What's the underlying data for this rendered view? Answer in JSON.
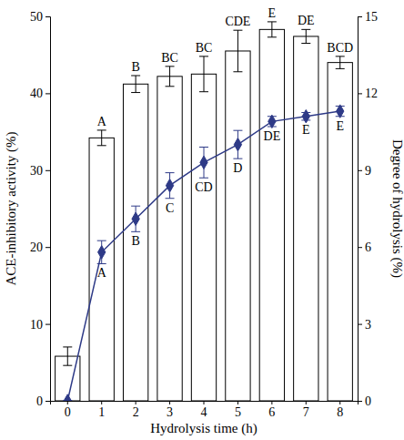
{
  "chart_data": {
    "type": "bar",
    "x_label": "Hydrolysis time (h)",
    "y_label": "ACE-inhibitory activity (%)",
    "y2_label": "Degree of hydrolysis (%)",
    "categories": [
      "0",
      "1",
      "2",
      "3",
      "4",
      "5",
      "6",
      "7",
      "8"
    ],
    "ylim": [
      0,
      50
    ],
    "yticks": [
      0,
      10,
      20,
      30,
      40,
      50
    ],
    "y2lim": [
      0,
      15
    ],
    "y2ticks": [
      0,
      3,
      6,
      9,
      12,
      15
    ],
    "grid": false,
    "series": [
      {
        "type": "bar",
        "color": "#ffffff",
        "values": [
          5.8,
          34.2,
          41.2,
          42.2,
          42.5,
          45.5,
          48.3,
          47.4,
          44.0
        ],
        "errors": [
          1.2,
          1.0,
          1.1,
          1.3,
          2.3,
          2.7,
          1.0,
          0.9,
          0.8
        ],
        "letters": [
          null,
          "A",
          "B",
          "BC",
          "BC",
          "CDE",
          "E",
          "DE",
          "BCD"
        ]
      },
      {
        "type": "line",
        "axis": "y2",
        "color": "#2e3a87",
        "marker": "diamond",
        "values": [
          0,
          5.8,
          7.1,
          8.4,
          9.3,
          10.0,
          10.9,
          11.1,
          11.3
        ],
        "errors": [
          0,
          0.45,
          0.5,
          0.5,
          0.6,
          0.55,
          0.2,
          0.15,
          0.2
        ],
        "letters": [
          null,
          "A",
          "B",
          "C",
          "CD",
          "D",
          "DE",
          "E",
          "E"
        ]
      }
    ]
  }
}
